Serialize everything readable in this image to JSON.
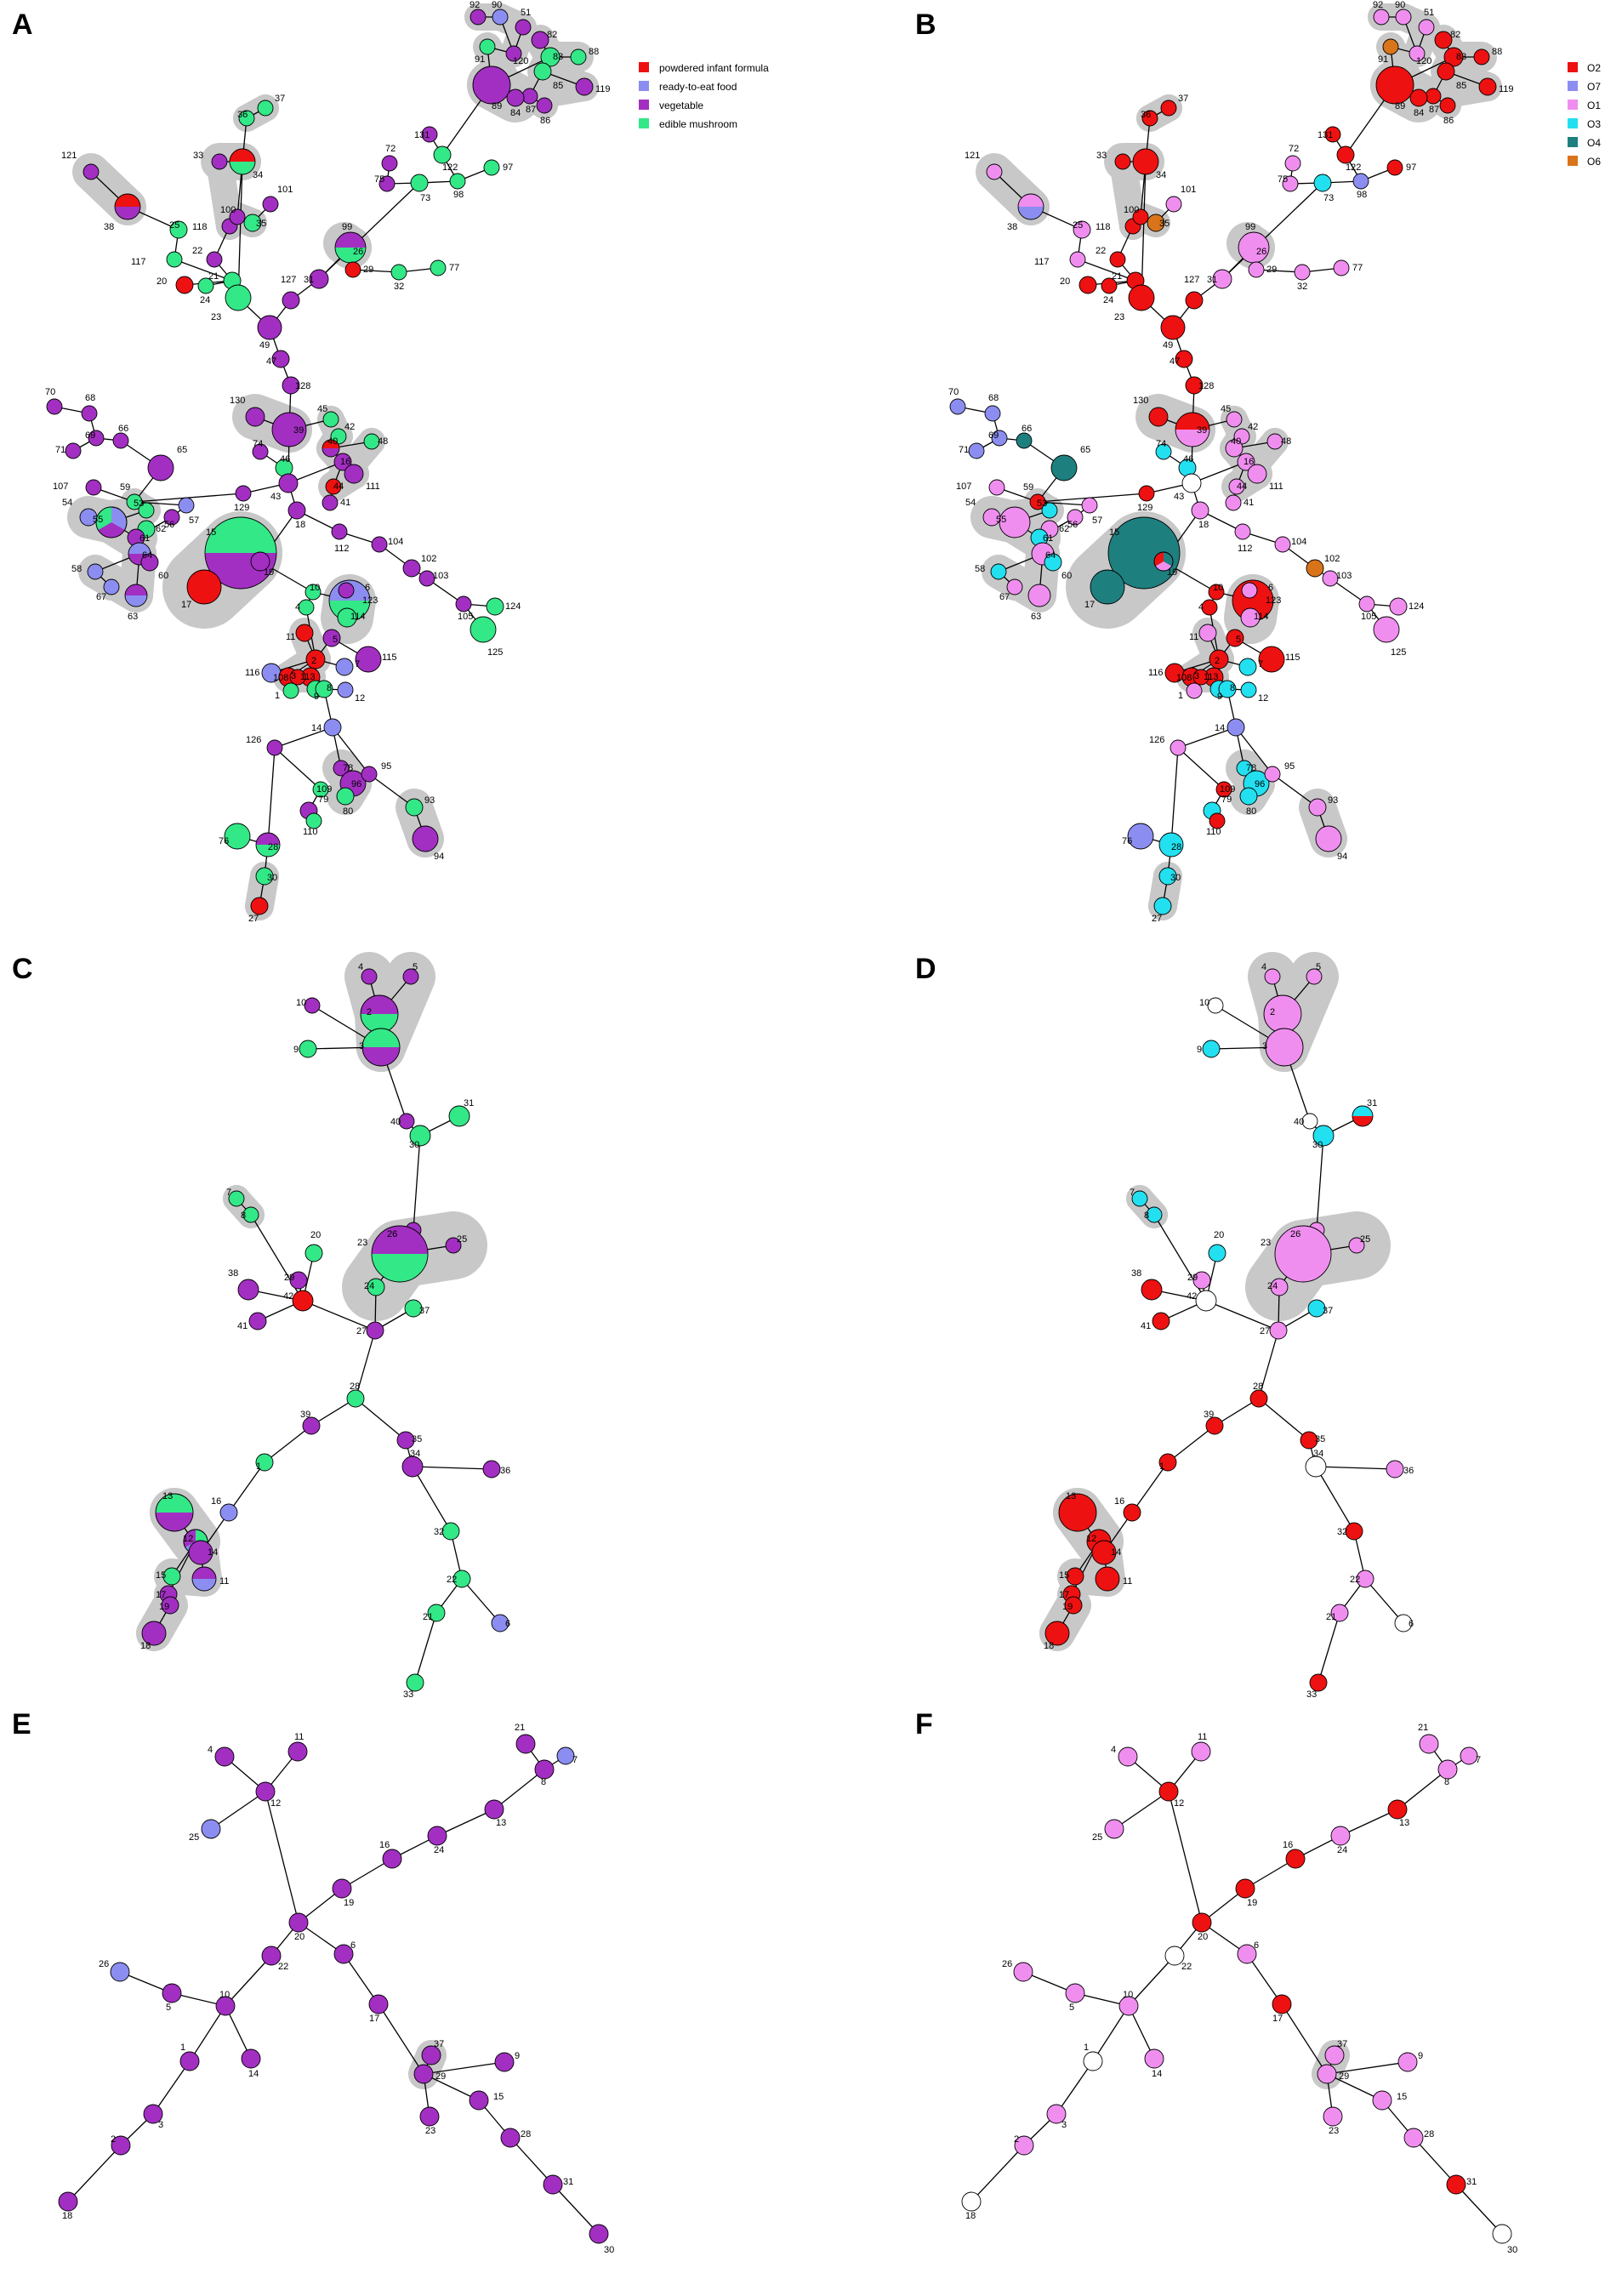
{
  "panels": {
    "A": {
      "label": "A",
      "legend": [
        {
          "text": "powdered infant formula",
          "color": "#ee1111"
        },
        {
          "text": "ready-to-eat food",
          "color": "#8b8ef0"
        },
        {
          "text": "vegetable",
          "color": "#a22fc2"
        },
        {
          "text": "edible mushroom",
          "color": "#33e887"
        }
      ]
    },
    "B": {
      "label": "B",
      "legend": [
        {
          "text": "O2",
          "color": "#ee1111"
        },
        {
          "text": "O7",
          "color": "#8b8ef0"
        },
        {
          "text": "O1",
          "color": "#f08ef0"
        },
        {
          "text": "O3",
          "color": "#22e0f0"
        },
        {
          "text": "O4",
          "color": "#1e7f7f"
        },
        {
          "text": "O6",
          "color": "#d9741a"
        }
      ]
    },
    "C": {
      "label": "C"
    },
    "D": {
      "label": "D"
    },
    "E": {
      "label": "E"
    },
    "F": {
      "label": "F"
    }
  },
  "colors": {
    "halo": "#c8c8c8",
    "edge": "#000000",
    "unknown": "#ffffff"
  }
}
